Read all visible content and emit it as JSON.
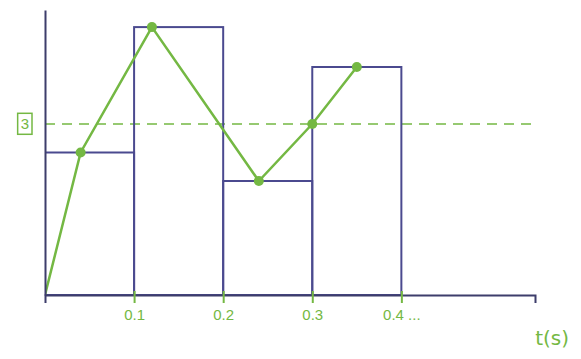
{
  "chart_data": {
    "type": "bar",
    "x_label": "t(s)",
    "bins": [
      0,
      0.1,
      0.2,
      0.3,
      0.4
    ],
    "values": [
      2.5,
      4.7,
      2.0,
      4.0
    ],
    "color": "#4b4a8f",
    "series": [
      {
        "type": "line",
        "x": [
          0,
          0.04,
          0.12,
          0.24,
          0.3,
          0.35
        ],
        "values": [
          0,
          2.5,
          4.7,
          2.0,
          3.0,
          4.0
        ],
        "color": "#74b843",
        "marker": "circle"
      }
    ],
    "xlim": [
      0,
      0.55
    ],
    "xticks": [
      0.1,
      0.2,
      0.3,
      {
        "value": 0.4,
        "label": "0.4 ..."
      }
    ],
    "ylim": [
      0,
      5
    ],
    "yticks": [
      3
    ],
    "grid": true
  }
}
